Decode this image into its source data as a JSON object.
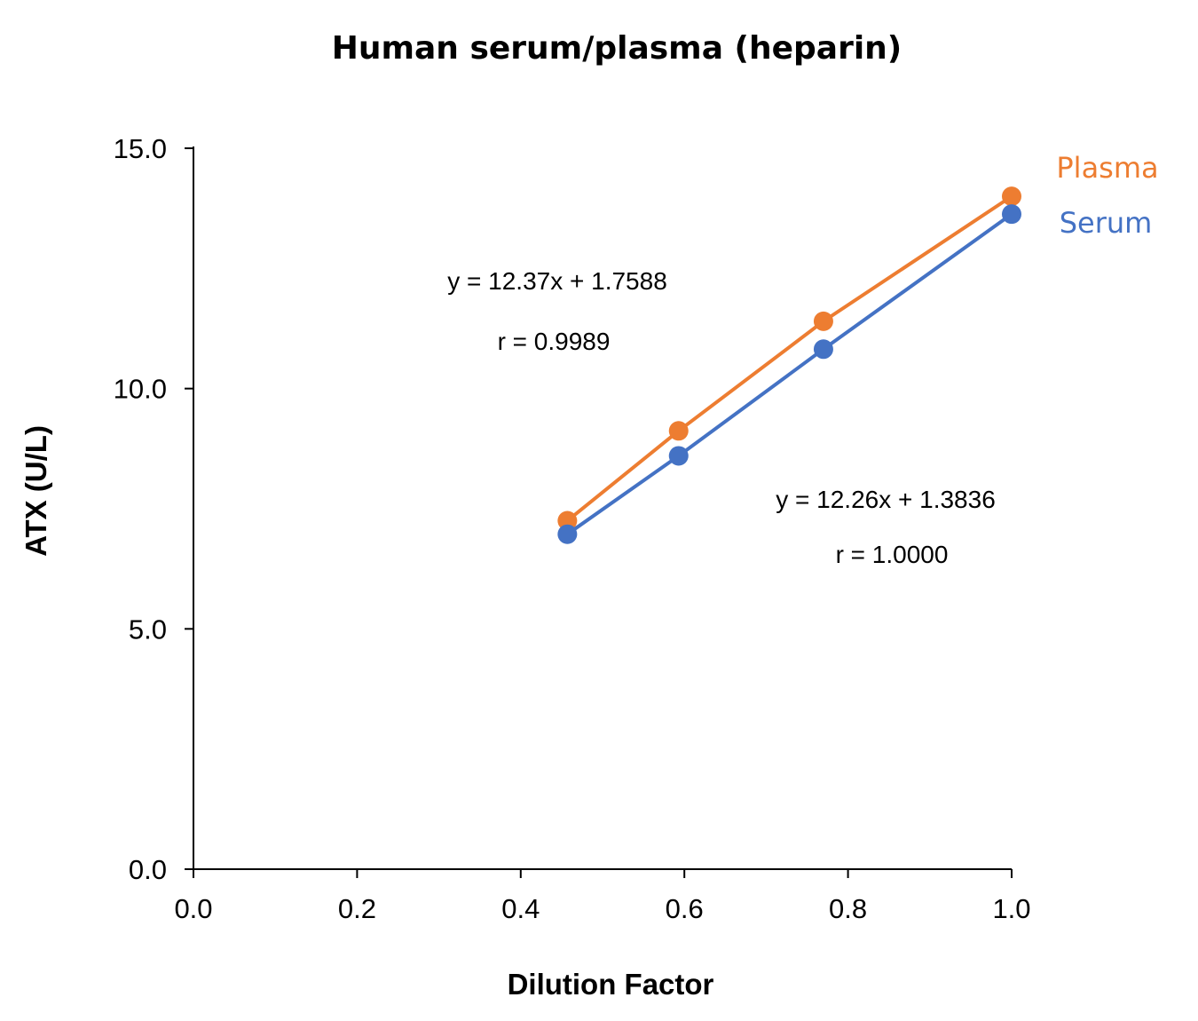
{
  "chart_data": {
    "type": "line",
    "title": "Human serum/plasma (heparin)",
    "xlabel": "Dilution Factor",
    "ylabel": "ATX (U/L)",
    "xlim": [
      0.0,
      1.0
    ],
    "ylim": [
      0.0,
      15.0
    ],
    "xticks": [
      "0.0",
      "0.2",
      "0.4",
      "0.6",
      "0.8",
      "1.0"
    ],
    "yticks": [
      "0.0",
      "5.0",
      "10.0",
      "15.0"
    ],
    "xtick_values": [
      0.0,
      0.2,
      0.4,
      0.6,
      0.8,
      1.0
    ],
    "ytick_values": [
      0.0,
      5.0,
      10.0,
      15.0
    ],
    "grid": false,
    "legend_position": "right-end labels",
    "series": [
      {
        "name": "Plasma",
        "color": "#ED7D31",
        "x": [
          0.457,
          0.593,
          0.77,
          1.0
        ],
        "y": [
          7.25,
          9.12,
          11.4,
          14.0
        ],
        "equation": "y = 12.37x + 1.7588",
        "r": "r = 0.9989"
      },
      {
        "name": "Serum",
        "color": "#4472C4",
        "x": [
          0.457,
          0.593,
          0.77,
          1.0
        ],
        "y": [
          6.97,
          8.6,
          10.82,
          13.63
        ],
        "equation": "y = 12.26x + 1.3836",
        "r": "r = 1.0000"
      }
    ]
  }
}
